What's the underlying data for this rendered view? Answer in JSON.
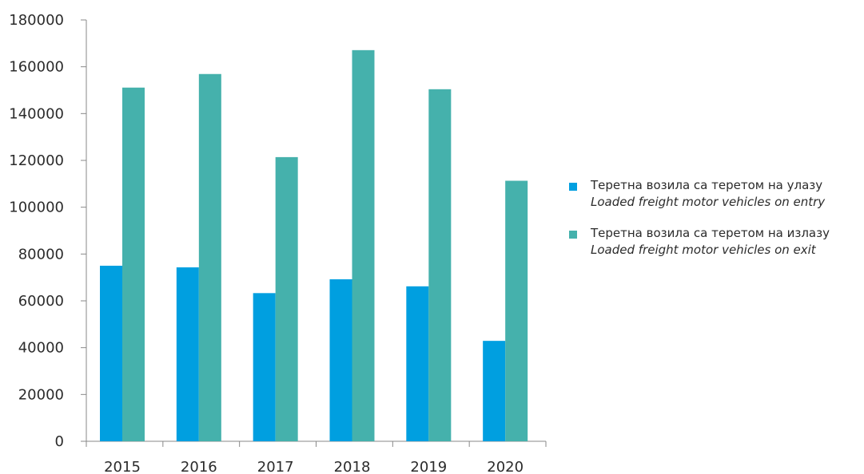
{
  "chart_data": {
    "type": "bar",
    "categories": [
      "2015",
      "2016",
      "2017",
      "2018",
      "2019",
      "2020"
    ],
    "series": [
      {
        "name": "Теретна возила са теретом на улазу",
        "subtitle": "Loaded freight motor vehicles on entry",
        "color": "#009fe0",
        "values": [
          75000,
          74300,
          63300,
          69200,
          66200,
          42900
        ]
      },
      {
        "name": "Теретна возила са теретом на излазу",
        "subtitle": "Loaded freight motor vehicles on exit",
        "color": "#45b1ac",
        "values": [
          151100,
          156900,
          121400,
          167100,
          150400,
          111300
        ]
      }
    ],
    "ylim": [
      0,
      180000
    ],
    "yticks": [
      "0",
      "20000",
      "40000",
      "60000",
      "80000",
      "100000",
      "120000",
      "140000",
      "160000",
      "180000"
    ],
    "grid": false,
    "legend_position": "right",
    "axis_color": "#888888"
  }
}
